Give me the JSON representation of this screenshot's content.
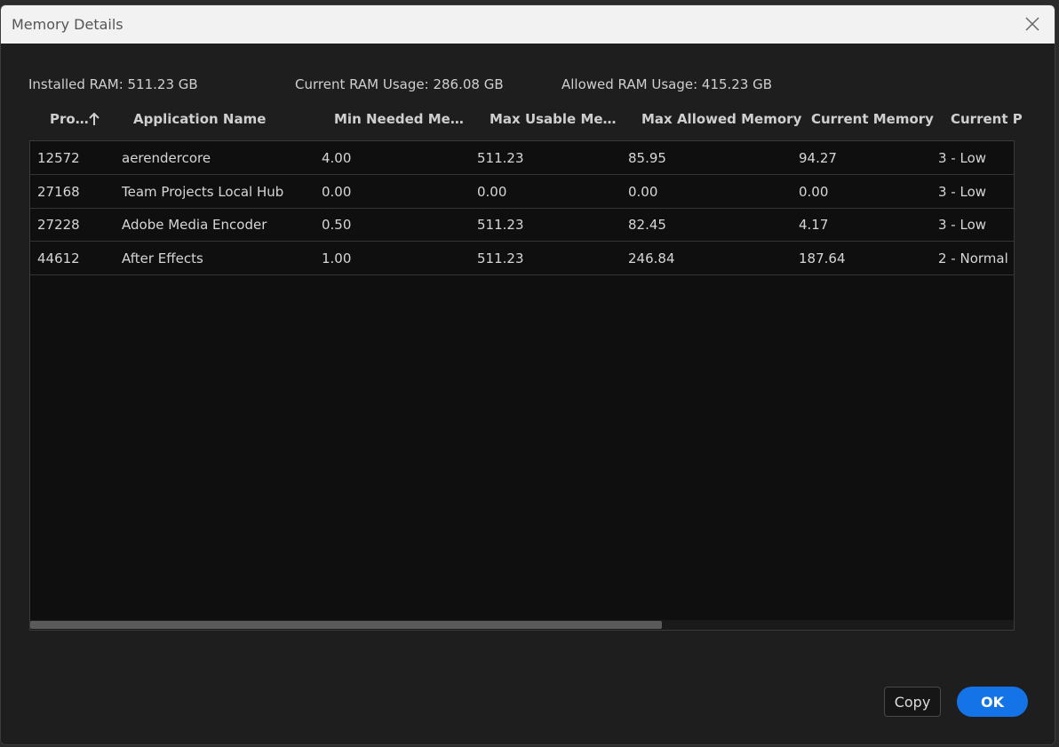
{
  "dialog": {
    "title": "Memory Details",
    "summary": [
      "Installed RAM: 511.23 GB",
      "Current RAM Usage: 286.08 GB",
      "Allowed RAM Usage: 415.23 GB"
    ],
    "table": {
      "headers": [
        "Pro…",
        "Application Name",
        "Min Needed Me…",
        "Max Usable Me…",
        "Max Allowed Memory",
        "Current Memory",
        "Current P"
      ],
      "rows": [
        [
          "12572",
          "aerendercore",
          "4.00",
          "511.23",
          "85.95",
          "94.27",
          "3 - Low"
        ],
        [
          "27168",
          "Team Projects Local Hub",
          "0.00",
          "0.00",
          "0.00",
          "0.00",
          "3 - Low"
        ],
        [
          "27228",
          "Adobe Media Encoder",
          "0.50",
          "511.23",
          "82.45",
          "4.17",
          "3 - Low"
        ],
        [
          "44612",
          "After Effects",
          "1.00",
          "511.23",
          "246.84",
          "187.64",
          "2 - Normal"
        ]
      ]
    },
    "buttons": [
      "Copy",
      "OK"
    ]
  }
}
